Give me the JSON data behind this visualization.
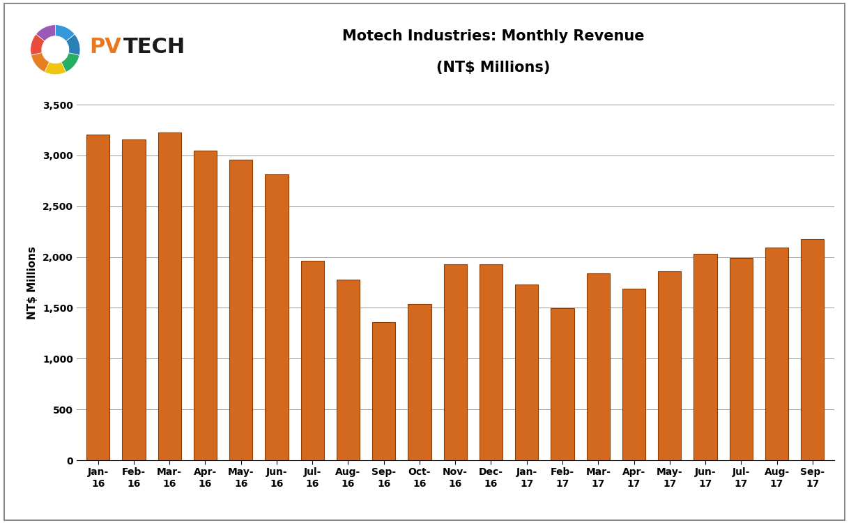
{
  "title_line1": "Motech Industries: Monthly Revenue",
  "title_line2": "(NT$ Millions)",
  "ylabel": "NT$ Millions",
  "categories": [
    "Jan-\n16",
    "Feb-\n16",
    "Mar-\n16",
    "Apr-\n16",
    "May-\n16",
    "Jun-\n16",
    "Jul-\n16",
    "Aug-\n16",
    "Sep-\n16",
    "Oct-\n16",
    "Nov-\n16",
    "Dec-\n16",
    "Jan-\n17",
    "Feb-\n17",
    "Mar-\n17",
    "Apr-\n17",
    "May-\n17",
    "Jun-\n17",
    "Jul-\n17",
    "Aug-\n17",
    "Sep-\n17"
  ],
  "values": [
    3205,
    3160,
    3225,
    3045,
    2960,
    2815,
    1960,
    1780,
    1360,
    1535,
    1930,
    1930,
    1730,
    1495,
    1840,
    1685,
    1860,
    2030,
    1990,
    2095,
    2175
  ],
  "bar_color": "#D2691E",
  "bar_edge_color": "#8B3A00",
  "ylim": [
    0,
    3500
  ],
  "yticks": [
    0,
    500,
    1000,
    1500,
    2000,
    2500,
    3000,
    3500
  ],
  "background_color": "#FFFFFF",
  "grid_color": "#888888",
  "title_fontsize": 15,
  "axis_label_fontsize": 11,
  "tick_fontsize": 10,
  "pvtech_pv_color": "#E87722",
  "pvtech_tech_color": "#1a1a1a"
}
